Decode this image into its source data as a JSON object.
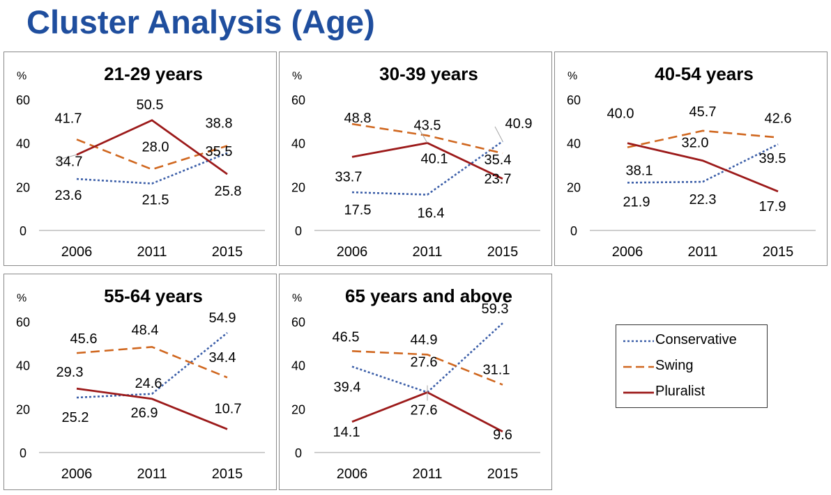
{
  "page_title": "Cluster Analysis (Age)",
  "colors": {
    "Conservative": "#3b5ea8",
    "Swing": "#d0671f",
    "Pluralist": "#9c1a1a",
    "title": "#1f4e9e"
  },
  "legend": {
    "items": [
      {
        "label": "Conservative",
        "style": "dotted"
      },
      {
        "label": "Swing",
        "style": "dashed"
      },
      {
        "label": "Pluralist",
        "style": "solid"
      }
    ]
  },
  "chart_data": [
    {
      "type": "line",
      "title": "21-29 years",
      "ylabel": "%",
      "categories": [
        "2006",
        "2011",
        "2015"
      ],
      "yticks": [
        "0",
        "20",
        "40",
        "60"
      ],
      "ylim": [
        0,
        60
      ],
      "series": [
        {
          "name": "Conservative",
          "values": [
            23.6,
            21.5,
            35.5
          ],
          "labels": [
            "23.6",
            "21.5",
            "35.5"
          ]
        },
        {
          "name": "Swing",
          "values": [
            41.7,
            28.0,
            38.8
          ],
          "labels": [
            "41.7",
            "28.0",
            "38.8"
          ]
        },
        {
          "name": "Pluralist",
          "values": [
            34.7,
            50.5,
            25.8
          ],
          "labels": [
            "34.7",
            "50.5",
            "25.8"
          ]
        }
      ]
    },
    {
      "type": "line",
      "title": "30-39 years",
      "ylabel": "%",
      "categories": [
        "2006",
        "2011",
        "2015"
      ],
      "yticks": [
        "0",
        "20",
        "40",
        "60"
      ],
      "ylim": [
        0,
        60
      ],
      "series": [
        {
          "name": "Conservative",
          "values": [
            17.5,
            16.4,
            40.9
          ],
          "labels": [
            "17.5",
            "16.4",
            "40.9"
          ]
        },
        {
          "name": "Swing",
          "values": [
            48.8,
            43.5,
            35.4
          ],
          "labels": [
            "48.8",
            "43.5",
            "35.4"
          ]
        },
        {
          "name": "Pluralist",
          "values": [
            33.7,
            40.1,
            23.7
          ],
          "labels": [
            "33.7",
            "40.1",
            "23.7"
          ]
        }
      ]
    },
    {
      "type": "line",
      "title": "40-54 years",
      "ylabel": "%",
      "categories": [
        "2006",
        "2011",
        "2015"
      ],
      "yticks": [
        "0",
        "20",
        "40",
        "60"
      ],
      "ylim": [
        0,
        60
      ],
      "series": [
        {
          "name": "Conservative",
          "values": [
            21.9,
            22.3,
            39.5
          ],
          "labels": [
            "21.9",
            "22.3",
            "39.5"
          ]
        },
        {
          "name": "Swing",
          "values": [
            38.1,
            45.7,
            42.6
          ],
          "labels": [
            "38.1",
            "45.7",
            "42.6"
          ]
        },
        {
          "name": "Pluralist",
          "values": [
            40.0,
            32.0,
            17.9
          ],
          "labels": [
            "40.0",
            "32.0",
            "17.9"
          ]
        }
      ]
    },
    {
      "type": "line",
      "title": "55-64 years",
      "ylabel": "%",
      "categories": [
        "2006",
        "2011",
        "2015"
      ],
      "yticks": [
        "0",
        "20",
        "40",
        "60"
      ],
      "ylim": [
        0,
        60
      ],
      "series": [
        {
          "name": "Conservative",
          "values": [
            25.2,
            26.9,
            54.9
          ],
          "labels": [
            "25.2",
            "26.9",
            "54.9"
          ]
        },
        {
          "name": "Swing",
          "values": [
            45.6,
            48.4,
            34.4
          ],
          "labels": [
            "45.6",
            "48.4",
            "34.4"
          ]
        },
        {
          "name": "Pluralist",
          "values": [
            29.3,
            24.6,
            10.7
          ],
          "labels": [
            "29.3",
            "24.6",
            "10.7"
          ]
        }
      ]
    },
    {
      "type": "line",
      "title": "65 years and above",
      "ylabel": "%",
      "categories": [
        "2006",
        "2011",
        "2015"
      ],
      "yticks": [
        "0",
        "20",
        "40",
        "60"
      ],
      "ylim": [
        0,
        60
      ],
      "series": [
        {
          "name": "Conservative",
          "values": [
            39.4,
            27.6,
            59.3
          ],
          "labels": [
            "39.4",
            "27.6",
            "59.3"
          ]
        },
        {
          "name": "Swing",
          "values": [
            46.5,
            44.9,
            31.1
          ],
          "labels": [
            "46.5",
            "44.9",
            "31.1"
          ]
        },
        {
          "name": "Pluralist",
          "values": [
            14.1,
            27.6,
            9.6
          ],
          "labels": [
            "14.1",
            "27.6",
            "9.6"
          ]
        }
      ]
    }
  ]
}
